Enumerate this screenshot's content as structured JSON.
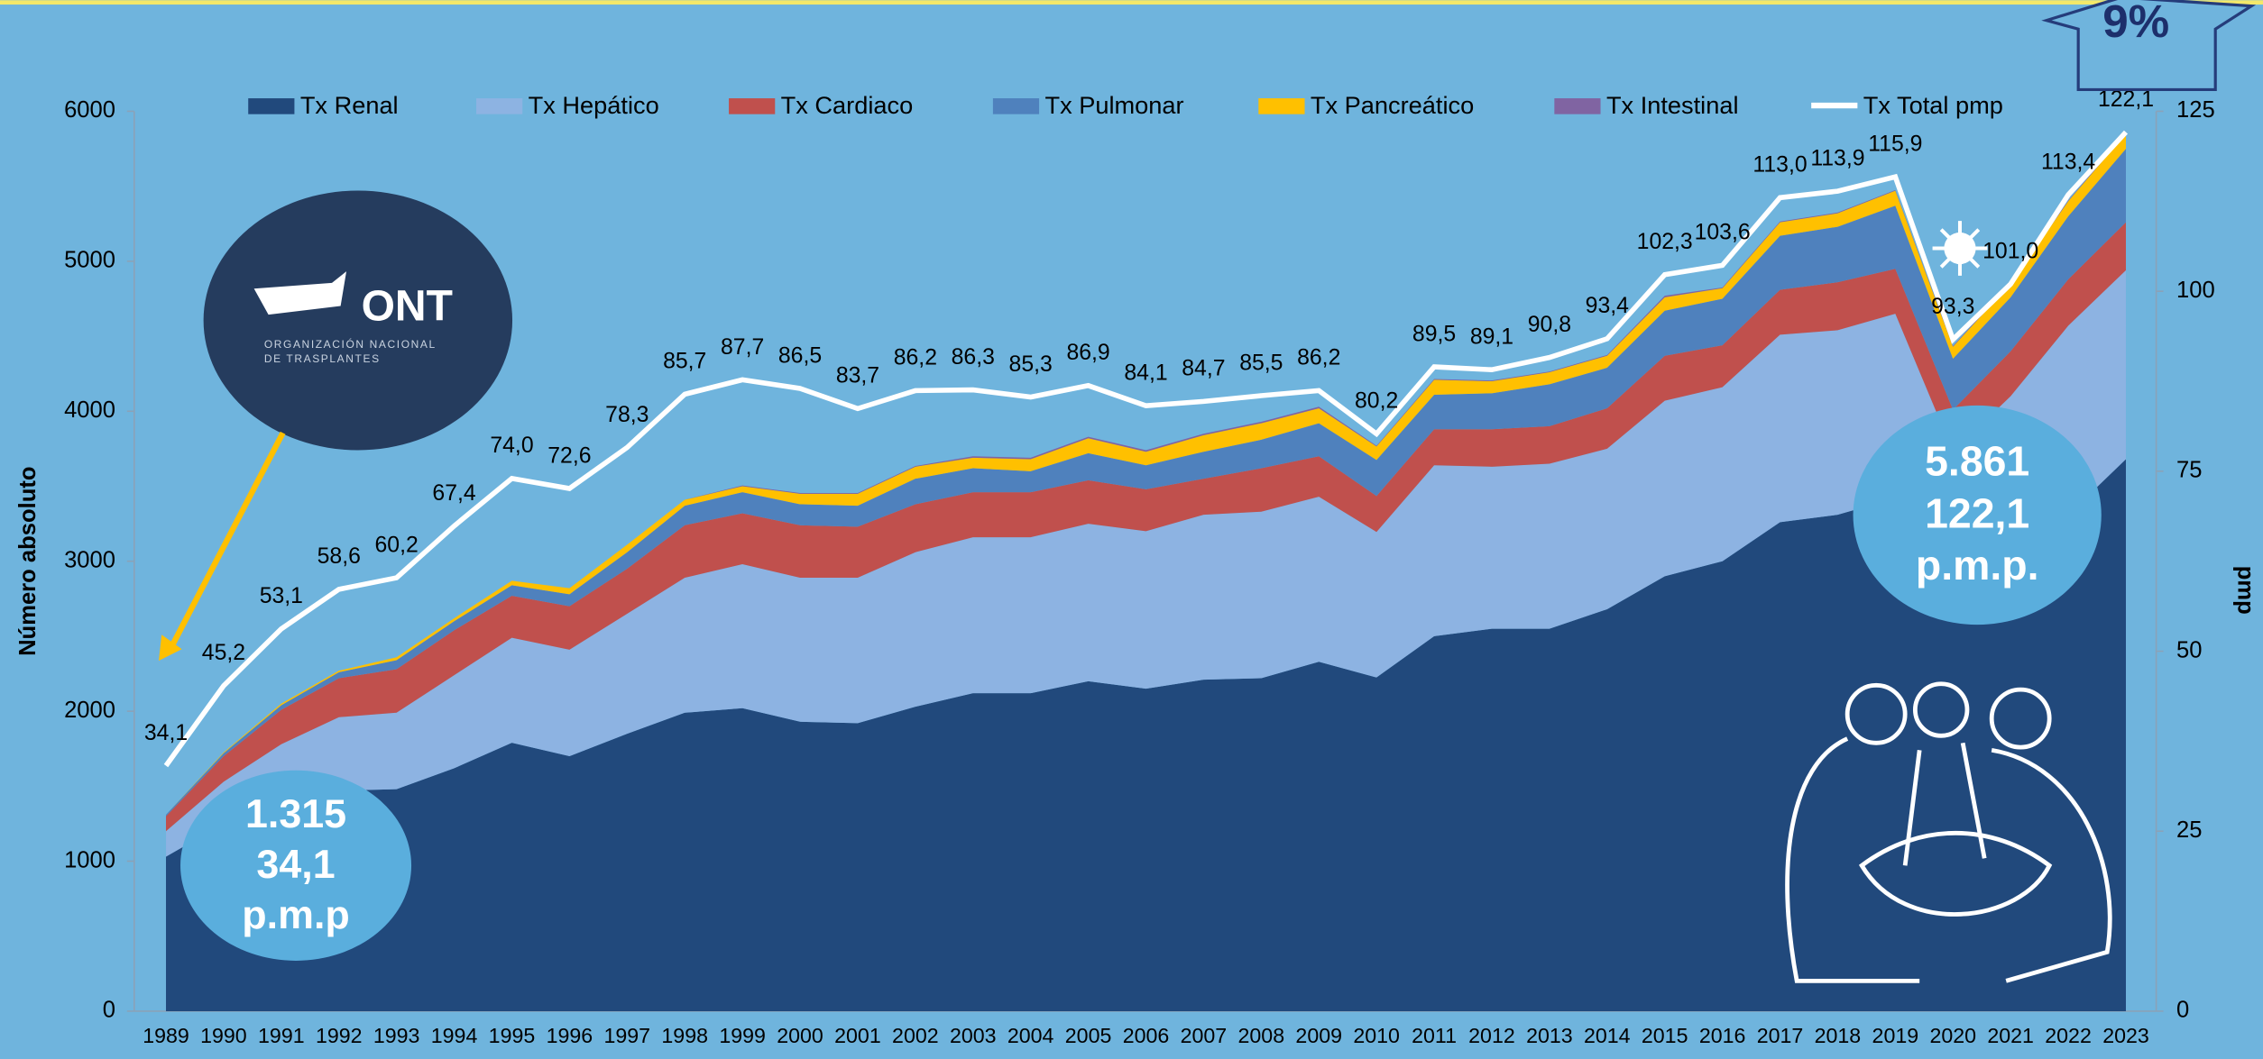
{
  "chart_data": {
    "type": "area",
    "y_label": "Número absoluto",
    "y2_label": "pmp",
    "categories": [
      "1989",
      "1990",
      "1991",
      "1992",
      "1993",
      "1994",
      "1995",
      "1996",
      "1997",
      "1998",
      "1999",
      "2000",
      "2001",
      "2002",
      "2003",
      "2004",
      "2005",
      "2006",
      "2007",
      "2008",
      "2009",
      "2010",
      "2011",
      "2012",
      "2013",
      "2014",
      "2015",
      "2016",
      "2017",
      "2018",
      "2019",
      "2020",
      "2021",
      "2022",
      "2023"
    ],
    "series": [
      {
        "name": "Tx Renal",
        "type": "area",
        "color": "#21497c",
        "values": [
          1030,
          1250,
          1400,
          1470,
          1480,
          1620,
          1790,
          1700,
          1850,
          1990,
          2020,
          1930,
          1920,
          2030,
          2120,
          2120,
          2200,
          2150,
          2210,
          2220,
          2330,
          2225,
          2500,
          2550,
          2550,
          2680,
          2900,
          3000,
          3260,
          3310,
          3420,
          2700,
          3020,
          3310,
          3680
        ]
      },
      {
        "name": "Tx Hepático",
        "type": "area",
        "color": "#8db3e2",
        "values": [
          170,
          280,
          380,
          490,
          510,
          620,
          700,
          710,
          800,
          900,
          960,
          960,
          970,
          1030,
          1040,
          1040,
          1050,
          1050,
          1100,
          1110,
          1100,
          970,
          1140,
          1080,
          1100,
          1070,
          1170,
          1160,
          1250,
          1230,
          1230,
          1030,
          1080,
          1260,
          1260
        ]
      },
      {
        "name": "Tx Cardiaco",
        "type": "area",
        "color": "#c0504d",
        "values": [
          100,
          170,
          230,
          260,
          290,
          300,
          280,
          290,
          300,
          350,
          340,
          350,
          340,
          320,
          300,
          300,
          290,
          280,
          240,
          290,
          270,
          240,
          240,
          250,
          250,
          270,
          300,
          280,
          300,
          320,
          300,
          280,
          300,
          310,
          320
        ]
      },
      {
        "name": "Tx Pulmonar",
        "type": "area",
        "color": "#4f81bd",
        "values": [
          10,
          20,
          30,
          40,
          60,
          60,
          70,
          80,
          110,
          130,
          140,
          140,
          140,
          170,
          160,
          140,
          180,
          160,
          180,
          190,
          220,
          240,
          230,
          240,
          280,
          270,
          300,
          310,
          360,
          370,
          420,
          340,
          360,
          420,
          490
        ]
      },
      {
        "name": "Tx Pancreático",
        "type": "area",
        "color": "#ffc000",
        "values": [
          0,
          5,
          10,
          10,
          20,
          20,
          30,
          40,
          50,
          40,
          40,
          70,
          80,
          80,
          70,
          80,
          100,
          90,
          110,
          110,
          100,
          90,
          100,
          80,
          80,
          80,
          90,
          70,
          90,
          90,
          100,
          80,
          90,
          100,
          100
        ]
      },
      {
        "name": "Tx Intestinal",
        "type": "area",
        "color": "#8064a2",
        "values": [
          0,
          0,
          0,
          0,
          0,
          0,
          0,
          0,
          0,
          0,
          5,
          5,
          5,
          5,
          10,
          10,
          10,
          10,
          10,
          10,
          10,
          5,
          5,
          5,
          5,
          5,
          10,
          5,
          5,
          5,
          5,
          5,
          5,
          5,
          5
        ]
      },
      {
        "name": "Tx Total pmp",
        "type": "line",
        "axis": "y2",
        "color": "#ffffff",
        "values": [
          34.1,
          45.2,
          53.1,
          58.6,
          60.2,
          67.4,
          74.0,
          72.6,
          78.3,
          85.7,
          87.7,
          86.5,
          83.7,
          86.2,
          86.3,
          85.3,
          86.9,
          84.1,
          84.7,
          85.5,
          86.2,
          80.2,
          89.5,
          89.1,
          90.8,
          93.4,
          102.3,
          103.6,
          113.0,
          113.9,
          115.9,
          93.3,
          101.0,
          113.4,
          122.1
        ],
        "value_labels": [
          "34,1",
          "45,2",
          "53,1",
          "58,6",
          "60,2",
          "67,4",
          "74,0",
          "72,6",
          "78,3",
          "85,7",
          "87,7",
          "86,5",
          "83,7",
          "86,2",
          "86,3",
          "85,3",
          "86,9",
          "84,1",
          "84,7",
          "85,5",
          "86,2",
          "80,2",
          "89,5",
          "89,1",
          "90,8",
          "93,4",
          "102,3",
          "103,6",
          "113,0",
          "113,9",
          "115,9",
          "93,3",
          "101,0",
          "113,4",
          "122,1"
        ]
      }
    ],
    "ylim": [
      0,
      6000
    ],
    "yticks": [
      0,
      1000,
      2000,
      3000,
      4000,
      5000,
      6000
    ],
    "y2lim": [
      0,
      125
    ],
    "y2ticks": [
      0,
      25,
      50,
      75,
      100,
      125
    ],
    "legend": "top",
    "annotations": {
      "start": [
        "1.315",
        "34,1",
        "p.m.p"
      ],
      "end": [
        "5.861",
        "122,1",
        "p.m.p."
      ],
      "growth": "9%"
    },
    "logo": {
      "name": "ONT",
      "line1": "ORGANIZACIÓN NACIONAL",
      "line2": "DE TRASPLANTES"
    }
  }
}
